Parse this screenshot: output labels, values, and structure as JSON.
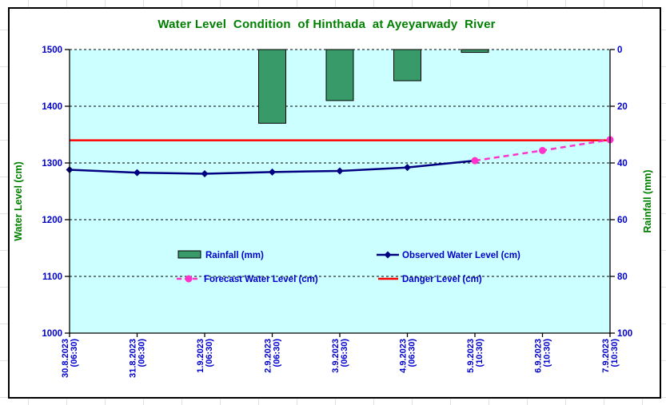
{
  "colors": {
    "title_green": "#008000",
    "label_blue": "#0000CC",
    "bar_green": "#379A68",
    "observed_navy": "#000080",
    "forecast_magenta": "#FF33CC",
    "danger_red": "#FF0000",
    "plot_bg": "#CCFFFF",
    "axis_line": "#000000"
  },
  "chart_data": {
    "type": "combo-bar-line",
    "title": "Water Level  Condition  of Hinthada  at Ayeyarwady  River",
    "plot_bg": "#CCFFFF",
    "grid": "horizontal-dashed",
    "legend_position": "inside-bottom",
    "categories": [
      {
        "date": "30.8.2023",
        "time": "(06:30)"
      },
      {
        "date": "31.8.2023",
        "time": "(06:30)"
      },
      {
        "date": "1.9.2023",
        "time": "(06:30)"
      },
      {
        "date": "2.9.2023",
        "time": "(06:30)"
      },
      {
        "date": "3.9.2023",
        "time": "(06:30)"
      },
      {
        "date": "4.9.2023",
        "time": "(06:30)"
      },
      {
        "date": "5.9.2023",
        "time": "(10:30)"
      },
      {
        "date": "6.9.2023",
        "time": "(10:30)"
      },
      {
        "date": "7.9.2023",
        "time": "(10:30)"
      }
    ],
    "left_axis": {
      "title": "Water Level (cm)",
      "min": 1000,
      "max": 1500,
      "ticks": [
        1500,
        1400,
        1300,
        1200,
        1100,
        1000
      ]
    },
    "right_axis": {
      "title": "Rainfall (mm)",
      "min": 0,
      "max": 100,
      "inverted": true,
      "ticks": [
        0,
        20,
        40,
        60,
        80,
        100
      ]
    },
    "series": [
      {
        "name": "Rainfall (mm)",
        "type": "bar",
        "axis": "right",
        "color": "#379A68",
        "values": [
          null,
          null,
          null,
          26,
          18,
          11,
          1,
          null,
          null
        ]
      },
      {
        "name": "Observed Water Level (cm)",
        "type": "line",
        "marker": "diamond",
        "axis": "left",
        "color": "#000080",
        "values": [
          1288,
          1283,
          1281,
          1284,
          1286,
          1292,
          1304,
          null,
          null
        ]
      },
      {
        "name": "Forecast Water Level (cm)",
        "type": "line",
        "marker": "circle",
        "dashed": true,
        "axis": "left",
        "color": "#FF33CC",
        "values": [
          null,
          null,
          null,
          null,
          null,
          null,
          1304,
          1322,
          1341
        ]
      },
      {
        "name": "Danger Level (cm)",
        "type": "hline",
        "axis": "left",
        "color": "#FF0000",
        "value": 1340
      }
    ]
  }
}
